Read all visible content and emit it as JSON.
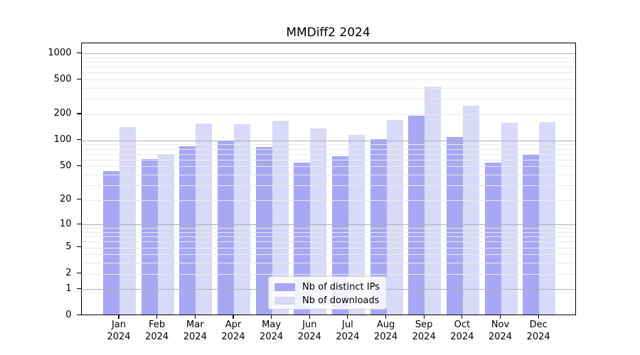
{
  "title": "MMDiff2 2024",
  "chart_data": {
    "type": "bar",
    "title": "MMDiff2 2024",
    "categories": [
      "Jan 2024",
      "Feb 2024",
      "Mar 2024",
      "Apr 2024",
      "May 2024",
      "Jun 2024",
      "Jul 2024",
      "Aug 2024",
      "Sep 2024",
      "Oct 2024",
      "Nov 2024",
      "Dec 2024"
    ],
    "series": [
      {
        "name": "Nb of distinct IPs",
        "color": "#a7a7f3",
        "values": [
          43,
          60,
          85,
          97,
          82,
          55,
          65,
          101,
          190,
          108,
          54,
          67
        ]
      },
      {
        "name": "Nb of downloads",
        "color": "#d9d9f8",
        "values": [
          140,
          68,
          155,
          150,
          165,
          136,
          115,
          168,
          410,
          245,
          157,
          160
        ]
      }
    ],
    "xlabel": "",
    "ylabel": "",
    "yscale": "log1p",
    "yticks": [
      0,
      1,
      2,
      5,
      10,
      20,
      50,
      100,
      200,
      500,
      1000
    ],
    "minor_gridlines": [
      2,
      3,
      4,
      5,
      6,
      7,
      8,
      9,
      20,
      30,
      40,
      50,
      60,
      70,
      80,
      90,
      200,
      300,
      400,
      500,
      600,
      700,
      800,
      900
    ],
    "major_gridlines": [
      1,
      10,
      100,
      1000
    ],
    "ylim": [
      0,
      1300
    ],
    "grid": true,
    "legend_position": "inside-bottom-center",
    "colors": {
      "major_grid": "#b0b0b0",
      "minor_grid": "#e9e9e9",
      "axis": "#000000",
      "background": "#ffffff"
    }
  }
}
